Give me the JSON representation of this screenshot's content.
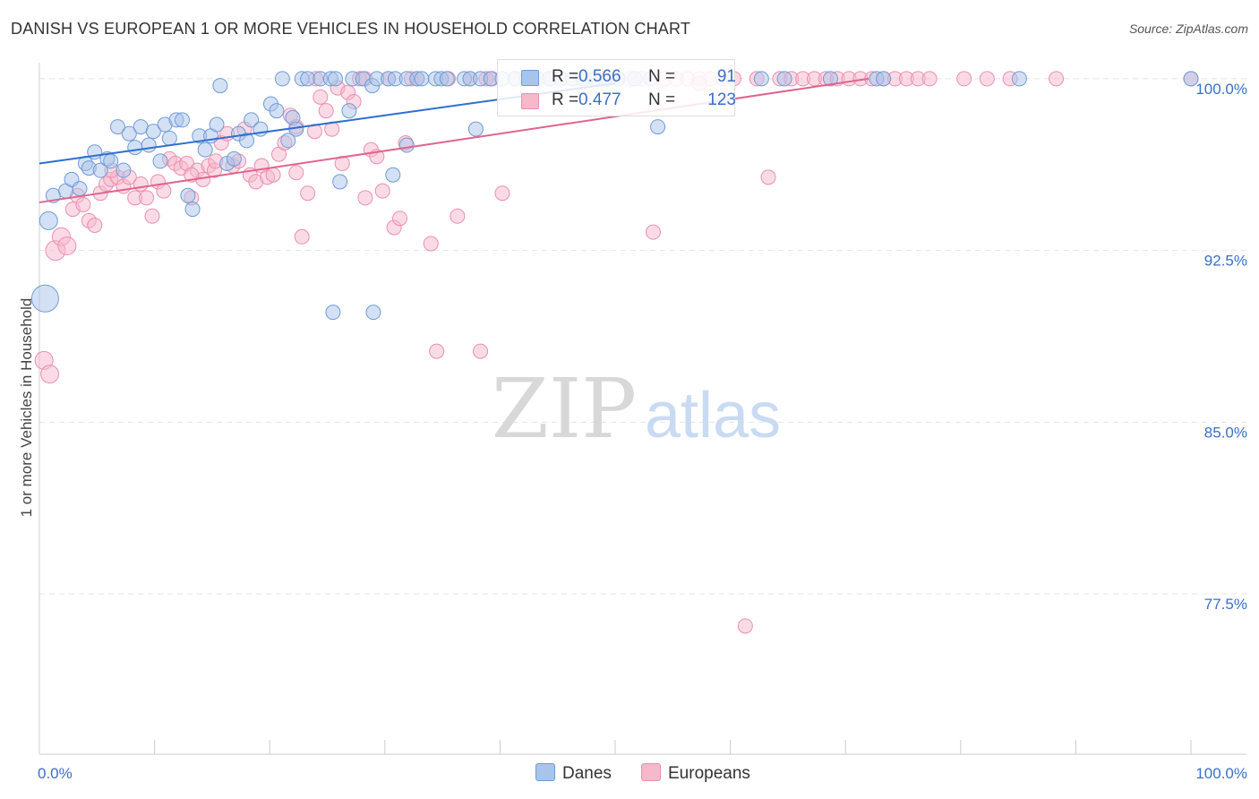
{
  "title": "DANISH VS EUROPEAN 1 OR MORE VEHICLES IN HOUSEHOLD CORRELATION CHART",
  "source": "Source: ZipAtlas.com",
  "watermark": {
    "zip": "ZIP",
    "atlas": "atlas"
  },
  "colors": {
    "danes_fill": "#a9c4ea",
    "danes_stroke": "#6f9bd8",
    "danes_line": "#2f6fcf",
    "europeans_fill": "#f6b8cb",
    "europeans_stroke": "#ec8fae",
    "europeans_line": "#e0648e",
    "value_text": "#3b6fc4",
    "grid": "#e4e4e4"
  },
  "legend": {
    "r_label": "R =",
    "n_label": "N =",
    "danes": {
      "r": "0.566",
      "n": "91"
    },
    "europeans": {
      "r": "0.477",
      "n": "123"
    }
  },
  "bottom_legend": {
    "danes": "Danes",
    "europeans": "Europeans"
  },
  "chart_data": {
    "type": "scatter",
    "title": "DANISH VS EUROPEAN 1 OR MORE VEHICLES IN HOUSEHOLD CORRELATION CHART",
    "xlabel": "",
    "ylabel": "1 or more Vehicles in Household",
    "xlim": [
      0,
      100
    ],
    "ylim": [
      70.5,
      100.7
    ],
    "x_tick_labels": [
      {
        "value": 0,
        "label": "0.0%"
      },
      {
        "value": 100,
        "label": "100.0%"
      }
    ],
    "y_tick_labels": [
      {
        "value": 100,
        "label": "100.0%"
      },
      {
        "value": 92.5,
        "label": "92.5%"
      },
      {
        "value": 85,
        "label": "85.0%"
      },
      {
        "value": 77.5,
        "label": "77.5%"
      }
    ],
    "grid": true,
    "legend_position": "top-center",
    "series": [
      {
        "name": "Danes",
        "r": 0.566,
        "n": 91,
        "trend": {
          "x": [
            0,
            50
          ],
          "y": [
            96.3,
            99.8
          ]
        },
        "points": [
          [
            0.5,
            90.4,
            15
          ],
          [
            0.8,
            93.8,
            10
          ],
          [
            1.2,
            94.9,
            8
          ],
          [
            2.3,
            95.1,
            8
          ],
          [
            2.8,
            95.6,
            8
          ],
          [
            3.5,
            95.2,
            8
          ],
          [
            4.0,
            96.3,
            8
          ],
          [
            4.3,
            96.1,
            8
          ],
          [
            4.8,
            96.8,
            8
          ],
          [
            5.3,
            96.0,
            8
          ],
          [
            5.9,
            96.5,
            8
          ],
          [
            6.2,
            96.4,
            8
          ],
          [
            6.8,
            97.9,
            8
          ],
          [
            7.3,
            96.0,
            8
          ],
          [
            7.8,
            97.6,
            8
          ],
          [
            8.3,
            97.0,
            8
          ],
          [
            8.8,
            97.9,
            8
          ],
          [
            9.5,
            97.1,
            8
          ],
          [
            9.9,
            97.7,
            8
          ],
          [
            10.5,
            96.4,
            8
          ],
          [
            10.9,
            98.0,
            8
          ],
          [
            11.3,
            97.4,
            8
          ],
          [
            11.9,
            98.2,
            8
          ],
          [
            12.4,
            98.2,
            8
          ],
          [
            12.9,
            94.9,
            8
          ],
          [
            13.3,
            94.3,
            8
          ],
          [
            13.9,
            97.5,
            8
          ],
          [
            14.4,
            96.9,
            8
          ],
          [
            14.9,
            97.5,
            8
          ],
          [
            15.4,
            98.0,
            8
          ],
          [
            15.7,
            99.7,
            8
          ],
          [
            16.3,
            96.3,
            8
          ],
          [
            16.9,
            96.5,
            8
          ],
          [
            17.3,
            97.6,
            8
          ],
          [
            18.0,
            97.3,
            8
          ],
          [
            18.4,
            98.2,
            8
          ],
          [
            19.2,
            97.8,
            8
          ],
          [
            20.1,
            98.9,
            8
          ],
          [
            20.6,
            98.6,
            8
          ],
          [
            21.1,
            100.0,
            8
          ],
          [
            21.6,
            97.3,
            8
          ],
          [
            22.0,
            98.3,
            8
          ],
          [
            22.3,
            97.8,
            8
          ],
          [
            22.8,
            100.0,
            8
          ],
          [
            23.3,
            100.0,
            8
          ],
          [
            24.4,
            100.0,
            8
          ],
          [
            25.3,
            100.0,
            8
          ],
          [
            25.7,
            100.0,
            8
          ],
          [
            26.1,
            95.5,
            8
          ],
          [
            26.9,
            98.6,
            8
          ],
          [
            27.2,
            100.0,
            8
          ],
          [
            28.1,
            100.0,
            8
          ],
          [
            28.9,
            99.7,
            8
          ],
          [
            29.3,
            100.0,
            8
          ],
          [
            30.3,
            100.0,
            8
          ],
          [
            30.9,
            100.0,
            8
          ],
          [
            31.9,
            100.0,
            8
          ],
          [
            32.8,
            100.0,
            8
          ],
          [
            33.2,
            100.0,
            8
          ],
          [
            34.4,
            100.0,
            8
          ],
          [
            34.9,
            100.0,
            8
          ],
          [
            35.4,
            100.0,
            8
          ],
          [
            36.9,
            100.0,
            8
          ],
          [
            37.4,
            100.0,
            8
          ],
          [
            38.3,
            100.0,
            8
          ],
          [
            39.2,
            100.0,
            8
          ],
          [
            40.2,
            100.0,
            8
          ],
          [
            41.3,
            100.0,
            8
          ],
          [
            42.3,
            100.0,
            8
          ],
          [
            43.3,
            100.0,
            8
          ],
          [
            44.3,
            100.0,
            8
          ],
          [
            45.3,
            100.0,
            8
          ],
          [
            46.3,
            100.0,
            8
          ],
          [
            47.2,
            100.0,
            8
          ],
          [
            48.2,
            100.0,
            8
          ],
          [
            49.3,
            100.0,
            8
          ],
          [
            50.2,
            100.0,
            8
          ],
          [
            51.7,
            100.0,
            8
          ],
          [
            53.1,
            100.0,
            8
          ],
          [
            25.5,
            89.8,
            8
          ],
          [
            29.0,
            89.8,
            8
          ],
          [
            30.7,
            95.8,
            8
          ],
          [
            31.9,
            97.1,
            8
          ],
          [
            37.9,
            97.8,
            8
          ],
          [
            53.7,
            97.9,
            8
          ],
          [
            62.7,
            100.0,
            8
          ],
          [
            64.7,
            100.0,
            8
          ],
          [
            68.7,
            100.0,
            8
          ],
          [
            72.7,
            100.0,
            8
          ],
          [
            73.3,
            100.0,
            8
          ],
          [
            85.1,
            100.0,
            8
          ],
          [
            100.0,
            100.0,
            8
          ]
        ]
      },
      {
        "name": "Europeans",
        "r": 0.477,
        "n": 123,
        "trend": {
          "x": [
            0,
            72
          ],
          "y": [
            94.6,
            100.0
          ]
        },
        "points": [
          [
            0.4,
            87.7,
            10
          ],
          [
            0.9,
            87.1,
            10
          ],
          [
            1.4,
            92.5,
            11
          ],
          [
            1.9,
            93.1,
            10
          ],
          [
            2.4,
            92.7,
            10
          ],
          [
            2.9,
            94.3,
            8
          ],
          [
            3.3,
            94.9,
            8
          ],
          [
            3.8,
            94.5,
            8
          ],
          [
            4.3,
            93.8,
            8
          ],
          [
            4.8,
            93.6,
            8
          ],
          [
            5.3,
            95.0,
            8
          ],
          [
            5.8,
            95.4,
            8
          ],
          [
            6.2,
            95.6,
            8
          ],
          [
            6.8,
            95.7,
            8
          ],
          [
            7.3,
            95.3,
            8
          ],
          [
            7.8,
            95.7,
            8
          ],
          [
            8.3,
            94.8,
            8
          ],
          [
            8.8,
            95.4,
            8
          ],
          [
            9.3,
            94.8,
            8
          ],
          [
            9.8,
            94.0,
            8
          ],
          [
            10.3,
            95.5,
            8
          ],
          [
            10.8,
            95.1,
            8
          ],
          [
            11.3,
            96.5,
            8
          ],
          [
            11.8,
            96.3,
            8
          ],
          [
            12.3,
            96.1,
            8
          ],
          [
            12.8,
            96.3,
            8
          ],
          [
            13.2,
            94.8,
            8
          ],
          [
            13.7,
            96.0,
            8
          ],
          [
            14.2,
            95.6,
            8
          ],
          [
            14.7,
            96.2,
            8
          ],
          [
            15.2,
            96.0,
            8
          ],
          [
            15.8,
            97.2,
            8
          ],
          [
            16.3,
            97.6,
            8
          ],
          [
            16.8,
            96.2,
            8
          ],
          [
            17.3,
            96.4,
            8
          ],
          [
            17.8,
            97.8,
            8
          ],
          [
            18.3,
            95.8,
            8
          ],
          [
            18.8,
            95.5,
            8
          ],
          [
            19.3,
            96.2,
            8
          ],
          [
            19.8,
            95.7,
            8
          ],
          [
            20.3,
            95.8,
            8
          ],
          [
            20.8,
            96.7,
            8
          ],
          [
            21.3,
            97.2,
            8
          ],
          [
            21.8,
            98.4,
            8
          ],
          [
            22.3,
            95.9,
            8
          ],
          [
            22.8,
            93.1,
            8
          ],
          [
            23.3,
            95.0,
            8
          ],
          [
            23.9,
            97.7,
            8
          ],
          [
            24.4,
            99.2,
            8
          ],
          [
            24.9,
            98.6,
            8
          ],
          [
            25.4,
            97.8,
            8
          ],
          [
            25.9,
            99.6,
            8
          ],
          [
            26.3,
            96.3,
            8
          ],
          [
            26.8,
            99.4,
            8
          ],
          [
            27.3,
            99.0,
            8
          ],
          [
            27.8,
            100.0,
            8
          ],
          [
            28.3,
            94.8,
            8
          ],
          [
            28.8,
            96.9,
            8
          ],
          [
            29.3,
            96.6,
            8
          ],
          [
            29.8,
            95.1,
            8
          ],
          [
            30.3,
            100.0,
            8
          ],
          [
            30.8,
            93.5,
            8
          ],
          [
            31.3,
            93.9,
            8
          ],
          [
            31.8,
            97.2,
            8
          ],
          [
            32.3,
            100.0,
            8
          ],
          [
            32.8,
            100.0,
            8
          ],
          [
            34.0,
            92.8,
            8
          ],
          [
            34.5,
            88.1,
            8
          ],
          [
            35.5,
            100.0,
            8
          ],
          [
            36.3,
            94.0,
            8
          ],
          [
            37.4,
            100.0,
            8
          ],
          [
            38.3,
            88.1,
            8
          ],
          [
            38.8,
            100.0,
            8
          ],
          [
            39.3,
            100.0,
            8
          ],
          [
            40.2,
            95.0,
            8
          ],
          [
            41.3,
            100.0,
            8
          ],
          [
            42.3,
            100.0,
            8
          ],
          [
            43.3,
            100.0,
            8
          ],
          [
            44.3,
            100.0,
            8
          ],
          [
            45.3,
            100.0,
            8
          ],
          [
            46.3,
            100.0,
            8
          ],
          [
            47.3,
            100.0,
            8
          ],
          [
            48.3,
            100.0,
            8
          ],
          [
            49.3,
            100.0,
            8
          ],
          [
            50.3,
            100.0,
            8
          ],
          [
            51.3,
            100.0,
            8
          ],
          [
            52.3,
            100.0,
            8
          ],
          [
            53.3,
            93.3,
            8
          ],
          [
            54.3,
            100.0,
            8
          ],
          [
            55.3,
            100.0,
            8
          ],
          [
            56.3,
            100.0,
            8
          ],
          [
            57.3,
            100.0,
            8
          ],
          [
            58.3,
            100.0,
            8
          ],
          [
            59.3,
            100.0,
            8
          ],
          [
            60.3,
            100.0,
            8
          ],
          [
            61.3,
            76.1,
            8
          ],
          [
            62.3,
            100.0,
            8
          ],
          [
            63.3,
            95.7,
            8
          ],
          [
            64.3,
            100.0,
            8
          ],
          [
            65.3,
            100.0,
            8
          ],
          [
            66.3,
            100.0,
            8
          ],
          [
            67.3,
            100.0,
            8
          ],
          [
            68.3,
            100.0,
            8
          ],
          [
            69.3,
            100.0,
            8
          ],
          [
            70.3,
            100.0,
            8
          ],
          [
            71.3,
            100.0,
            8
          ],
          [
            72.3,
            100.0,
            8
          ],
          [
            73.3,
            100.0,
            8
          ],
          [
            74.3,
            100.0,
            8
          ],
          [
            75.3,
            100.0,
            8
          ],
          [
            76.3,
            100.0,
            8
          ],
          [
            77.3,
            100.0,
            8
          ],
          [
            80.3,
            100.0,
            8
          ],
          [
            82.3,
            100.0,
            8
          ],
          [
            84.3,
            100.0,
            8
          ],
          [
            88.3,
            100.0,
            8
          ],
          [
            100.0,
            100.0,
            8
          ],
          [
            57.3,
            99.8,
            8
          ],
          [
            15.3,
            96.4,
            8
          ],
          [
            13.2,
            95.8,
            8
          ],
          [
            6.3,
            96.0,
            8
          ],
          [
            22.3,
            97.9,
            8
          ],
          [
            28.3,
            100.0,
            8
          ],
          [
            24.0,
            100.0,
            8
          ]
        ]
      }
    ]
  }
}
